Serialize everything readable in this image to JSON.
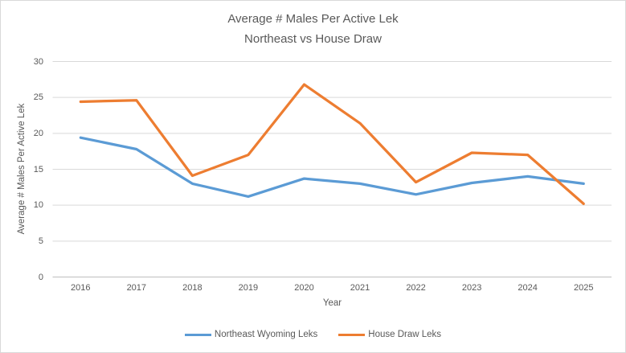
{
  "window": {
    "background": "#ffffff",
    "border_color": "#d9d9d9"
  },
  "chart_data": {
    "type": "line",
    "title": "Average # Males Per Active Lek",
    "subtitle": "Northeast vs House Draw",
    "xlabel": "Year",
    "ylabel": "Average # Males Per Active Lek",
    "categories": [
      "2016",
      "2017",
      "2018",
      "2019",
      "2020",
      "2021",
      "2022",
      "2023",
      "2024",
      "2025"
    ],
    "series": [
      {
        "name": "Northeast Wyoming Leks",
        "color": "#5B9BD5",
        "values": [
          19.4,
          17.8,
          13.0,
          11.2,
          13.7,
          13.0,
          11.5,
          13.1,
          14.0,
          13.0
        ]
      },
      {
        "name": "House Draw Leks",
        "color": "#ED7D31",
        "values": [
          24.4,
          24.6,
          14.1,
          17.0,
          26.8,
          21.4,
          13.2,
          17.3,
          17.0,
          10.2
        ]
      }
    ],
    "ylim": [
      0,
      30
    ],
    "y_ticks": [
      0,
      5,
      10,
      15,
      20,
      25,
      30
    ],
    "grid": true,
    "legend_position": "bottom",
    "gridline_color": "#d9d9d9",
    "axis_line_color": "#bfbfbf",
    "text_color": "#595959"
  }
}
